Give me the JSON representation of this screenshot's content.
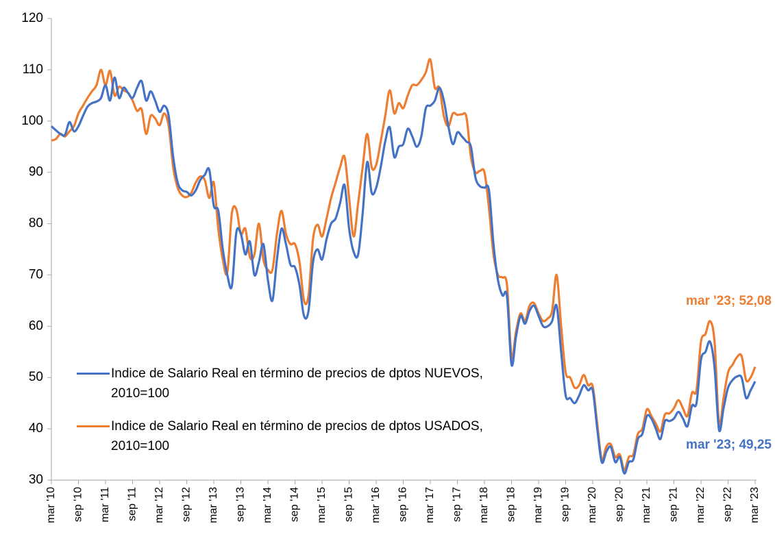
{
  "chart_data": {
    "type": "line",
    "categories": [
      "mar '10",
      null,
      null,
      null,
      null,
      null,
      "sep '10",
      null,
      null,
      null,
      null,
      null,
      "mar '11",
      null,
      null,
      null,
      null,
      null,
      "sep '11",
      null,
      null,
      null,
      null,
      null,
      "mar '12",
      null,
      null,
      null,
      null,
      null,
      "sep '12",
      null,
      null,
      null,
      null,
      null,
      "mar '13",
      null,
      null,
      null,
      null,
      null,
      "sep '13",
      null,
      null,
      null,
      null,
      null,
      "mar '14",
      null,
      null,
      null,
      null,
      null,
      "sep '14",
      null,
      null,
      null,
      null,
      null,
      "mar '15",
      null,
      null,
      null,
      null,
      null,
      "sep '15",
      null,
      null,
      null,
      null,
      null,
      "mar '16",
      null,
      null,
      null,
      null,
      null,
      "sep '16",
      null,
      null,
      null,
      null,
      null,
      "mar '17",
      null,
      null,
      null,
      null,
      null,
      "sep '17",
      null,
      null,
      null,
      null,
      null,
      "mar '18",
      null,
      null,
      null,
      null,
      null,
      "sep '18",
      null,
      null,
      null,
      null,
      null,
      "mar '19",
      null,
      null,
      null,
      null,
      null,
      "sep '19",
      null,
      null,
      null,
      null,
      null,
      "mar '20",
      null,
      null,
      null,
      null,
      null,
      "sep '20",
      null,
      null,
      null,
      null,
      null,
      "mar '21",
      null,
      null,
      null,
      null,
      null,
      "sep '21",
      null,
      null,
      null,
      null,
      null,
      "mar '22",
      null,
      null,
      null,
      null,
      null,
      "sep '22",
      null,
      null,
      null,
      null,
      null,
      "mar '23"
    ],
    "series": [
      {
        "name": "Indice de Salario Real en término de precios de dptos NUEVOS, 2010=100",
        "color": "#4472c4",
        "values": [
          99,
          98.2,
          97.5,
          97.3,
          99.8,
          98,
          99,
          101,
          102.8,
          103.5,
          103.8,
          104.5,
          107,
          104,
          108.5,
          104.5,
          106.5,
          105.5,
          104.5,
          106.5,
          107.8,
          104,
          105.8,
          104,
          101.8,
          103,
          101,
          93,
          88,
          86.5,
          86.2,
          85.5,
          86.5,
          88.5,
          89.5,
          90.5,
          83.5,
          82.5,
          75,
          70,
          67.8,
          78.3,
          78,
          74,
          76.5,
          70,
          72.5,
          76,
          69,
          65,
          73,
          79,
          76,
          72,
          71.5,
          68,
          62,
          63,
          72.5,
          75,
          73,
          77,
          80,
          81,
          84,
          87.5,
          79,
          74.5,
          74,
          82,
          92,
          86,
          87,
          91,
          96,
          98.8,
          93,
          95,
          95.5,
          98.5,
          97,
          95,
          97,
          102.5,
          103,
          104,
          106.5,
          104,
          99,
          95.5,
          97.8,
          97,
          96,
          95,
          89,
          87.3,
          87,
          86.5,
          76,
          69,
          66,
          65.8,
          52.5,
          58,
          62,
          60.5,
          63,
          64,
          62,
          60,
          60,
          61,
          64,
          55,
          46.5,
          46,
          45,
          46.5,
          48.5,
          47.5,
          47.5,
          40,
          33.5,
          35.5,
          36.5,
          33.5,
          34.5,
          31.3,
          33.5,
          34,
          38,
          39,
          42.5,
          42,
          40,
          38,
          41.5,
          41.5,
          42,
          43.3,
          42,
          40.5,
          44.5,
          45,
          53.5,
          55,
          57,
          52,
          39.8,
          44,
          48,
          49.5,
          50.2,
          50,
          46,
          47.5,
          49.25
        ]
      },
      {
        "name": "Indice de Salario Real en término de precios de dptos USADOS, 2010=100",
        "color": "#ed7d31",
        "values": [
          96.2,
          96.5,
          97.5,
          97,
          98,
          99,
          101.5,
          103,
          104.5,
          105.8,
          107,
          110,
          107,
          109.8,
          105,
          106.7,
          106,
          105.5,
          104,
          102,
          102.3,
          97.5,
          101,
          100.5,
          99.2,
          101.5,
          99,
          91,
          87,
          85.5,
          85.2,
          86,
          88,
          89.2,
          88.5,
          85,
          88,
          79,
          73,
          70.5,
          82,
          82.8,
          78,
          79,
          73.5,
          74,
          80,
          73,
          71,
          71,
          78,
          82.5,
          78,
          76,
          76,
          72.5,
          65,
          66,
          77,
          79.8,
          77.5,
          81,
          85,
          88,
          91,
          93,
          85,
          77.5,
          84,
          91,
          97.5,
          91,
          91.5,
          96,
          101,
          106,
          101.5,
          103.5,
          102.5,
          105,
          107,
          107,
          108,
          109.5,
          112,
          106.5,
          106.5,
          101,
          99,
          101.5,
          101.2,
          101.3,
          100.8,
          93,
          90,
          90.3,
          90,
          83,
          74,
          70,
          69.5,
          68,
          54,
          59,
          62.5,
          61,
          64,
          64.5,
          62.5,
          61,
          61.5,
          63,
          70,
          60,
          51,
          50,
          48,
          48.5,
          50.5,
          48.5,
          48.3,
          41,
          34,
          36.5,
          37,
          34.5,
          35,
          32,
          34.5,
          35,
          39,
          40,
          43.8,
          42.5,
          41,
          39.5,
          42.8,
          43,
          44,
          45.6,
          44,
          42.5,
          47,
          47.5,
          57,
          58.5,
          61,
          57,
          41,
          46,
          51,
          52.5,
          54,
          54.2,
          49.5,
          50,
          52.08
        ]
      }
    ],
    "annotations": [
      "mar '23; 52,08",
      "mar '23; 49,25"
    ],
    "ylim": [
      30,
      120
    ],
    "yticks": [
      30,
      40,
      50,
      60,
      70,
      80,
      90,
      100,
      110,
      120
    ],
    "grid": false,
    "legend": "lower left"
  }
}
